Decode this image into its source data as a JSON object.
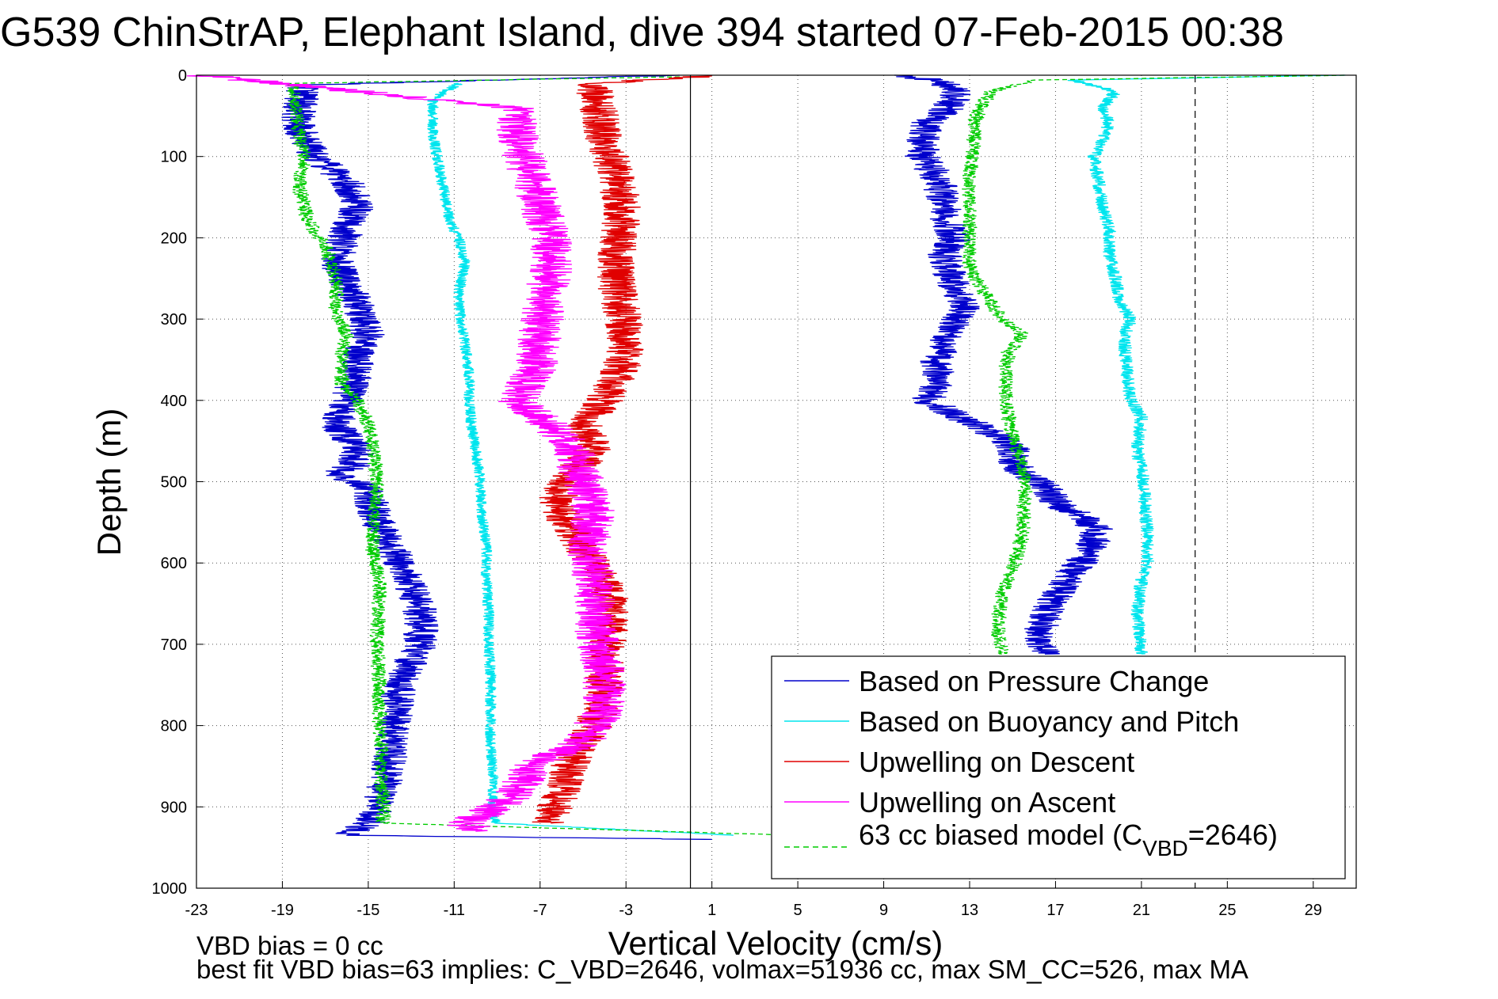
{
  "figure": {
    "title": "G539 ChinStrAP, Elephant Island, dive 394 started 07-Feb-2015 00:38",
    "footer_line1": "VBD bias = 0 cc",
    "footer_line2": "best fit VBD bias=63 implies: C_VBD=2646, volmax=51936 cc, max SM_CC=526, max MA"
  },
  "colors": {
    "pressure": "#0000cc",
    "buoyancy": "#00e5ee",
    "descent": "#e00000",
    "ascent": "#ff00ff",
    "model": "#00cc00",
    "grid": "#555555"
  },
  "chart_data": {
    "type": "line",
    "title": "G539 ChinStrAP, Elephant Island, dive 394 started 07-Feb-2015 00:38",
    "xlabel": "Vertical Velocity (cm/s)",
    "ylabel": "Depth (m)",
    "xlim": [
      -23,
      31
    ],
    "ylim": [
      0,
      1000
    ],
    "y_reversed": true,
    "grid": true,
    "x_ticks": [
      -23,
      -19,
      -15,
      -11,
      -7,
      -3,
      1,
      5,
      9,
      13,
      17,
      21,
      25,
      29
    ],
    "y_ticks": [
      0,
      100,
      200,
      300,
      400,
      500,
      600,
      700,
      800,
      900,
      1000
    ],
    "reference_lines": [
      {
        "x": 0,
        "style": "solid"
      },
      {
        "x": 23.5,
        "style": "dashed"
      }
    ],
    "legend": {
      "location": "bottom-right",
      "entries": [
        {
          "label": "Based on Pressure Change",
          "series": "pressure"
        },
        {
          "label": "Based on Buoyancy and Pitch",
          "series": "buoyancy"
        },
        {
          "label": "Upwelling on Descent",
          "series": "descent"
        },
        {
          "label": "Upwelling on Ascent",
          "series": "ascent"
        },
        {
          "label_main": "63 cc biased model (C",
          "label_sub": "VBD",
          "label_tail": "=2646)",
          "series": "model"
        }
      ]
    },
    "series": [
      {
        "key": "pressure_descent",
        "color_key": "pressure",
        "noise": 0.8,
        "points": [
          [
            -0.5,
            0
          ],
          [
            -18,
            12
          ],
          [
            -18.3,
            60
          ],
          [
            -17.5,
            100
          ],
          [
            -16,
            130
          ],
          [
            -15.5,
            160
          ],
          [
            -16,
            190
          ],
          [
            -16.5,
            230
          ],
          [
            -16,
            260
          ],
          [
            -15.5,
            280
          ],
          [
            -15.2,
            300
          ],
          [
            -15,
            320
          ],
          [
            -15.5,
            350
          ],
          [
            -15.7,
            380
          ],
          [
            -16,
            400
          ],
          [
            -16.5,
            430
          ],
          [
            -15.5,
            460
          ],
          [
            -15.7,
            480
          ],
          [
            -16.5,
            490
          ],
          [
            -15,
            510
          ],
          [
            -14.7,
            540
          ],
          [
            -14.2,
            570
          ],
          [
            -13.5,
            600
          ],
          [
            -12.8,
            640
          ],
          [
            -12.5,
            670
          ],
          [
            -12.6,
            700
          ],
          [
            -13.2,
            730
          ],
          [
            -13.6,
            760
          ],
          [
            -13.8,
            800
          ],
          [
            -14,
            840
          ],
          [
            -14.2,
            870
          ],
          [
            -14.6,
            900
          ],
          [
            -15,
            920
          ],
          [
            -16,
            935
          ],
          [
            1,
            940
          ]
        ]
      },
      {
        "key": "pressure_ascent",
        "color_key": "pressure",
        "noise": 0.8,
        "points": [
          [
            16.5,
            712
          ],
          [
            16.2,
            690
          ],
          [
            16.8,
            650
          ],
          [
            17.5,
            620
          ],
          [
            18.5,
            590
          ],
          [
            19,
            560
          ],
          [
            18,
            540
          ],
          [
            17,
            525
          ],
          [
            16.5,
            505
          ],
          [
            15.5,
            490
          ],
          [
            15,
            470
          ],
          [
            15,
            455
          ],
          [
            14,
            440
          ],
          [
            12.5,
            420
          ],
          [
            11,
            400
          ],
          [
            11.5,
            380
          ],
          [
            11.5,
            350
          ],
          [
            12,
            320
          ],
          [
            12.5,
            300
          ],
          [
            12.8,
            280
          ],
          [
            12.3,
            260
          ],
          [
            12,
            240
          ],
          [
            11.8,
            220
          ],
          [
            12.3,
            200
          ],
          [
            12,
            180
          ],
          [
            11.8,
            160
          ],
          [
            11.6,
            130
          ],
          [
            10.8,
            100
          ],
          [
            10.8,
            80
          ],
          [
            11,
            60
          ],
          [
            12,
            40
          ],
          [
            12.5,
            20
          ],
          [
            11.5,
            6
          ],
          [
            9.5,
            0
          ]
        ]
      },
      {
        "key": "buoyancy_descent",
        "color_key": "buoyancy",
        "noise": 0.25,
        "points": [
          [
            -10.8,
            10
          ],
          [
            -12,
            30
          ],
          [
            -12,
            70
          ],
          [
            -11.8,
            100
          ],
          [
            -11.5,
            140
          ],
          [
            -11.2,
            180
          ],
          [
            -10.8,
            200
          ],
          [
            -10.5,
            230
          ],
          [
            -10.8,
            270
          ],
          [
            -10.7,
            300
          ],
          [
            -10.5,
            330
          ],
          [
            -10.3,
            370
          ],
          [
            -10.3,
            400
          ],
          [
            -10.2,
            430
          ],
          [
            -10,
            460
          ],
          [
            -9.8,
            500
          ],
          [
            -9.7,
            540
          ],
          [
            -9.5,
            580
          ],
          [
            -9.5,
            620
          ],
          [
            -9.4,
            660
          ],
          [
            -9.4,
            700
          ],
          [
            -9.3,
            740
          ],
          [
            -9.3,
            780
          ],
          [
            -9.3,
            820
          ],
          [
            -9.2,
            860
          ],
          [
            -9.2,
            900
          ],
          [
            -9.1,
            920
          ],
          [
            2,
            935
          ]
        ]
      },
      {
        "key": "buoyancy_ascent",
        "color_key": "buoyancy",
        "noise": 0.3,
        "points": [
          [
            21,
            712
          ],
          [
            20.8,
            660
          ],
          [
            21,
            620
          ],
          [
            21.3,
            600
          ],
          [
            21.3,
            570
          ],
          [
            21.2,
            540
          ],
          [
            21.1,
            500
          ],
          [
            20.8,
            460
          ],
          [
            21,
            420
          ],
          [
            20.5,
            400
          ],
          [
            20.3,
            360
          ],
          [
            20.2,
            320
          ],
          [
            20.5,
            300
          ],
          [
            20,
            280
          ],
          [
            19.8,
            250
          ],
          [
            19.5,
            220
          ],
          [
            19.5,
            190
          ],
          [
            19.2,
            160
          ],
          [
            19,
            130
          ],
          [
            18.8,
            100
          ],
          [
            19.2,
            80
          ],
          [
            19.5,
            60
          ],
          [
            19.2,
            40
          ],
          [
            19.8,
            20
          ],
          [
            17.8,
            6
          ],
          [
            30.5,
            0
          ]
        ]
      },
      {
        "key": "model_descent",
        "color_key": "model",
        "noise": 0.35,
        "dashed": true,
        "points": [
          [
            -0.5,
            2
          ],
          [
            -18.5,
            10
          ],
          [
            -18.3,
            60
          ],
          [
            -18,
            100
          ],
          [
            -18.2,
            140
          ],
          [
            -17.8,
            180
          ],
          [
            -17,
            210
          ],
          [
            -16.5,
            250
          ],
          [
            -16.5,
            290
          ],
          [
            -16,
            320
          ],
          [
            -16.3,
            350
          ],
          [
            -16.2,
            380
          ],
          [
            -15.5,
            400
          ],
          [
            -15,
            430
          ],
          [
            -14.7,
            470
          ],
          [
            -14.6,
            500
          ],
          [
            -14.7,
            540
          ],
          [
            -14.8,
            580
          ],
          [
            -14.5,
            620
          ],
          [
            -14.5,
            660
          ],
          [
            -14.6,
            700
          ],
          [
            -14.5,
            740
          ],
          [
            -14.5,
            780
          ],
          [
            -14.4,
            820
          ],
          [
            -14.4,
            860
          ],
          [
            -14.3,
            900
          ],
          [
            -14.3,
            920
          ],
          [
            5,
            935
          ]
        ]
      },
      {
        "key": "model_ascent",
        "color_key": "model",
        "noise": 0.35,
        "dashed": true,
        "points": [
          [
            14.5,
            712
          ],
          [
            14.3,
            680
          ],
          [
            14.5,
            640
          ],
          [
            15,
            610
          ],
          [
            15.2,
            590
          ],
          [
            15.5,
            560
          ],
          [
            15.5,
            530
          ],
          [
            15.6,
            500
          ],
          [
            15.3,
            470
          ],
          [
            15,
            440
          ],
          [
            14.8,
            420
          ],
          [
            14.7,
            400
          ],
          [
            14.7,
            360
          ],
          [
            14.8,
            340
          ],
          [
            15.5,
            320
          ],
          [
            14.5,
            300
          ],
          [
            14,
            280
          ],
          [
            13.5,
            260
          ],
          [
            13,
            240
          ],
          [
            13,
            210
          ],
          [
            13,
            180
          ],
          [
            13,
            150
          ],
          [
            13,
            120
          ],
          [
            13.2,
            90
          ],
          [
            13.2,
            60
          ],
          [
            13.5,
            40
          ],
          [
            14,
            20
          ],
          [
            16,
            6
          ],
          [
            30.5,
            0
          ]
        ]
      },
      {
        "key": "descent",
        "color_key": "descent",
        "noise": 0.9,
        "points": [
          [
            1,
            1
          ],
          [
            -4.5,
            10
          ],
          [
            -4.3,
            40
          ],
          [
            -4,
            80
          ],
          [
            -3.5,
            120
          ],
          [
            -3.2,
            160
          ],
          [
            -3.3,
            200
          ],
          [
            -3.5,
            240
          ],
          [
            -3.3,
            280
          ],
          [
            -3,
            320
          ],
          [
            -3.2,
            360
          ],
          [
            -4,
            400
          ],
          [
            -5,
            430
          ],
          [
            -4.5,
            460
          ],
          [
            -5.5,
            490
          ],
          [
            -6.2,
            520
          ],
          [
            -5.8,
            550
          ],
          [
            -5,
            580
          ],
          [
            -4.3,
            610
          ],
          [
            -3.8,
            640
          ],
          [
            -3.8,
            680
          ],
          [
            -4,
            720
          ],
          [
            -4,
            760
          ],
          [
            -4.5,
            800
          ],
          [
            -5.5,
            840
          ],
          [
            -6,
            880
          ],
          [
            -6.5,
            920
          ]
        ]
      },
      {
        "key": "ascent",
        "color_key": "ascent",
        "noise": 1.0,
        "points": [
          [
            -22.8,
            0
          ],
          [
            -8.2,
            40
          ],
          [
            -8,
            80
          ],
          [
            -7.5,
            120
          ],
          [
            -7,
            160
          ],
          [
            -6.5,
            200
          ],
          [
            -6.5,
            240
          ],
          [
            -6.8,
            280
          ],
          [
            -7,
            320
          ],
          [
            -7.2,
            360
          ],
          [
            -8,
            400
          ],
          [
            -6.5,
            430
          ],
          [
            -5.5,
            460
          ],
          [
            -5,
            500
          ],
          [
            -4.5,
            540
          ],
          [
            -4.8,
            580
          ],
          [
            -4.5,
            620
          ],
          [
            -4.5,
            660
          ],
          [
            -4.3,
            700
          ],
          [
            -4,
            740
          ],
          [
            -4,
            780
          ],
          [
            -5,
            820
          ],
          [
            -7.5,
            850
          ],
          [
            -8,
            880
          ],
          [
            -9,
            900
          ],
          [
            -10.5,
            920
          ],
          [
            -10,
            930
          ]
        ]
      }
    ]
  }
}
